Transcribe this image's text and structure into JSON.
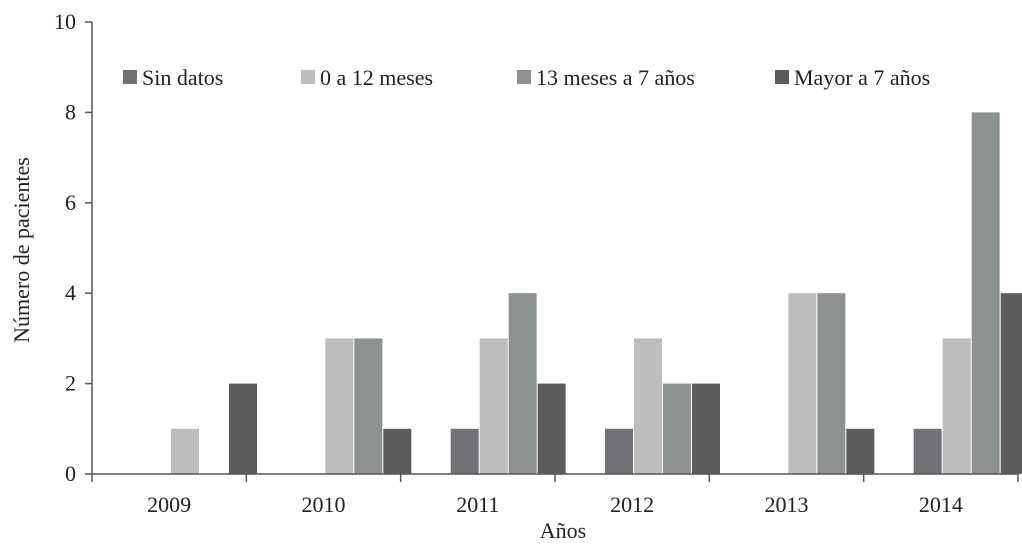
{
  "chart_data": {
    "type": "bar",
    "categories": [
      "2009",
      "2010",
      "2011",
      "2012",
      "2013",
      "2014"
    ],
    "series": [
      {
        "name": "Sin datos",
        "values": [
          0,
          0,
          1,
          1,
          0,
          1
        ],
        "color": "#707277"
      },
      {
        "name": "0 a 12 meses",
        "values": [
          1,
          3,
          3,
          3,
          4,
          3
        ],
        "color": "#bdbdbd"
      },
      {
        "name": "13 meses a 7 años",
        "values": [
          0,
          3,
          4,
          2,
          4,
          8
        ],
        "color": "#8c9292"
      },
      {
        "name": "Mayor a 7 años",
        "values": [
          2,
          1,
          2,
          2,
          1,
          4
        ],
        "color": "#5c5c5e"
      }
    ],
    "yticks": [
      "0",
      "2",
      "4",
      "6",
      "8",
      "10"
    ],
    "ylim": [
      0,
      10
    ],
    "xlabel": "Años",
    "ylabel": "Número de pacientes",
    "grid": false,
    "legend_position": "top"
  }
}
